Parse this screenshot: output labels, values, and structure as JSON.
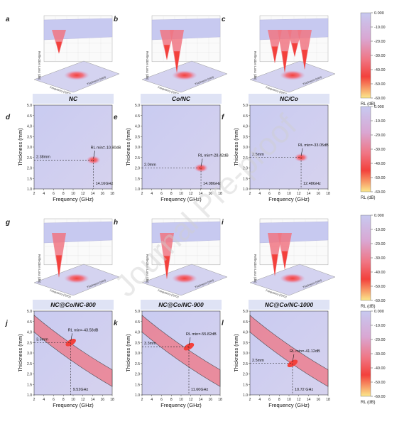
{
  "colors": {
    "low": "#c7c9f0",
    "mid1": "#d9a7d3",
    "mid2": "#f07583",
    "high": "#f3413c",
    "max": "#fbe88c",
    "scale_end": "#f4ee9a"
  },
  "panel_letters": [
    "a",
    "b",
    "c",
    "d",
    "e",
    "f",
    "g",
    "h",
    "i",
    "j",
    "k",
    "l"
  ],
  "samples": [
    "NC",
    "Co/NC",
    "NC/Co",
    "NC@Co/NC-800",
    "NC@Co/NC-900",
    "NC@Co/NC-1000"
  ],
  "axis": {
    "thickness_label": "Thickness (mm)",
    "frequency_label": "Frequency (GHz)",
    "rl_3d_label": "Reflection Loss (dB)",
    "freq_3d_label": "Frequency (GHz)",
    "thick_3d_label": "Thickness (mm)",
    "x_ticks": [
      "2",
      "4",
      "6",
      "8",
      "10",
      "12",
      "14",
      "16",
      "18"
    ],
    "y_ticks": [
      "1.0",
      "1.5",
      "2.0",
      "2.5",
      "3.0",
      "3.5",
      "4.0",
      "4.5",
      "5.0"
    ]
  },
  "colorbar": {
    "ticks": [
      "0.000",
      "-10.00",
      "-20.00",
      "-30.00",
      "-40.00",
      "-50.00",
      "-60.00"
    ],
    "label": "RL (dB)"
  },
  "annotations": {
    "d": {
      "rl": "RL min=-10.90dB",
      "thick": "2.38mm",
      "freq": "14.16GHz"
    },
    "e": {
      "rl": "RL min=-28.42dB",
      "thick": "2.0mm",
      "freq": "14.08GHz"
    },
    "f": {
      "rl": "RL min=-33.05dB",
      "thick": "2.5mm",
      "freq": "12.48GHz"
    },
    "j": {
      "rl": "RL min=-43.58dB",
      "thick": "3.5mm",
      "freq": "9.52GHz"
    },
    "k": {
      "rl": "RL min=-55.82dB",
      "thick": "3.3mm",
      "freq": "11.60GHz"
    },
    "l": {
      "rl": "RL min=-41.12dB",
      "thick": "2.5mm",
      "freq": "10.72 GHz"
    }
  },
  "watermark": "Journal Pre-proof"
}
